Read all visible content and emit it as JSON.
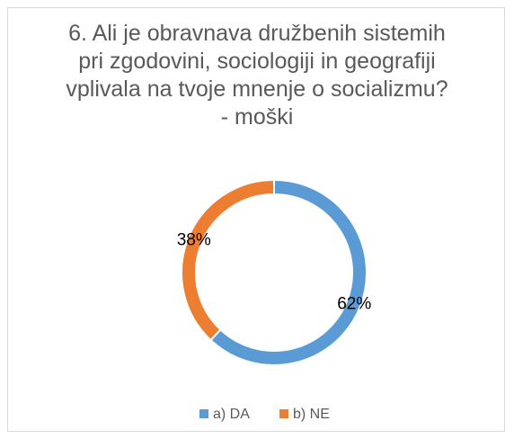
{
  "chart_data": {
    "type": "donut",
    "title": "6. Ali je obravnava družbenih sistemih pri zgodovini, sociologiji in geografiji vplivala na tvoje mnenje o socializmu? - moški",
    "categories": [
      "a) DA",
      "b) NE"
    ],
    "values": [
      62,
      38
    ],
    "value_labels": [
      "62%",
      "38%"
    ],
    "colors": [
      "#5b9bd5",
      "#ed7d31"
    ],
    "legend": "bottom"
  }
}
